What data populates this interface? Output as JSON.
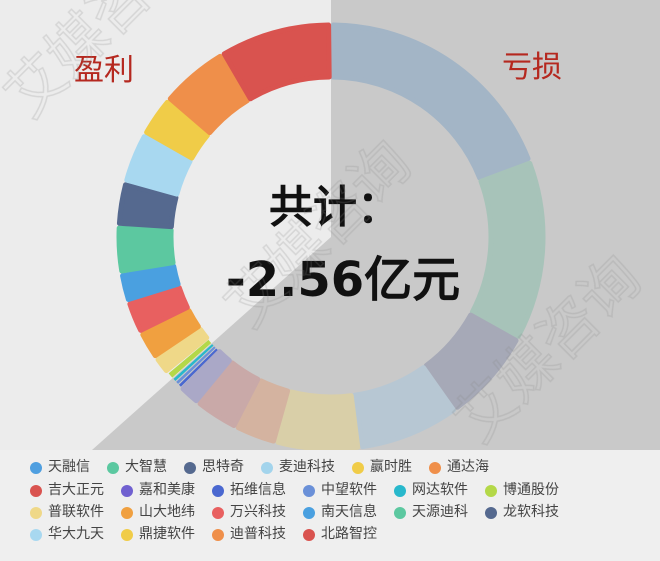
{
  "watermark": "艾媒咨询",
  "chart_data": {
    "type": "pie",
    "style": "donut",
    "center_label": "共计：",
    "center_value": "-2.56亿元",
    "profit_label": "盈利",
    "loss_label": "亏损",
    "value_unit": "approx. share of ring (%), estimated from arc angles",
    "losses": [
      {
        "name": "天融信",
        "value": 19.2,
        "color": "#4f9fe0",
        "ring_color": "#a3b5c6"
      },
      {
        "name": "大智慧",
        "value": 13.8,
        "color": "#5bc8a0",
        "ring_color": "#a7c3b9"
      },
      {
        "name": "思特奇",
        "value": 7.1,
        "color": "#55698f",
        "ring_color": "#a6a9b7"
      },
      {
        "name": "麦迪科技",
        "value": 7.8,
        "color": "#a3d4ec",
        "ring_color": "#b7c7d3"
      },
      {
        "name": "赢时胜",
        "value": 6.4,
        "color": "#f0cc48",
        "ring_color": "#d9cfa8"
      },
      {
        "name": "通达海",
        "value": 3.2,
        "color": "#ef8f4a",
        "ring_color": "#d4b3a0"
      },
      {
        "name": "吉大正元",
        "value": 3.4,
        "color": "#d9534f",
        "ring_color": "#c9a9a8"
      },
      {
        "name": "嘉和美康",
        "value": 1.7,
        "color": "#7060d0",
        "ring_color": "#aaa8c7"
      }
    ],
    "profits": [
      {
        "name": "拓维信息",
        "value": 0.3,
        "color": "#4a68d0"
      },
      {
        "name": "中望软件",
        "value": 0.3,
        "color": "#6a90d8"
      },
      {
        "name": "网达软件",
        "value": 0.3,
        "color": "#28b8cc"
      },
      {
        "name": "博通股份",
        "value": 0.6,
        "color": "#b4d848"
      },
      {
        "name": "普联软件",
        "value": 1.4,
        "color": "#efd888"
      },
      {
        "name": "山大地纬",
        "value": 2.2,
        "color": "#f0a040"
      },
      {
        "name": "万兴科技",
        "value": 2.5,
        "color": "#e86060"
      },
      {
        "name": "南天信息",
        "value": 2.2,
        "color": "#4aa0e0"
      },
      {
        "name": "天源迪科",
        "value": 3.6,
        "color": "#5cc8a0"
      },
      {
        "name": "龙软科技",
        "value": 3.3,
        "color": "#55698f"
      },
      {
        "name": "华大九天",
        "value": 3.9,
        "color": "#a8d8f0"
      },
      {
        "name": "鼎捷软件",
        "value": 3.1,
        "color": "#f0cc48"
      },
      {
        "name": "迪普科技",
        "value": 5.3,
        "color": "#ef8f4a"
      },
      {
        "name": "北路智控",
        "value": 8.6,
        "color": "#d9534f"
      }
    ],
    "legend_order": [
      "天融信",
      "大智慧",
      "思特奇",
      "麦迪科技",
      "赢时胜",
      "通达海",
      "吉大正元",
      "嘉和美康",
      "拓维信息",
      "中望软件",
      "网达软件",
      "博通股份",
      "普联软件",
      "山大地纬",
      "万兴科技",
      "南天信息",
      "天源迪科",
      "龙软科技",
      "华大九天",
      "鼎捷软件",
      "迪普科技",
      "北路智控"
    ],
    "legend_placement": "bottom"
  }
}
